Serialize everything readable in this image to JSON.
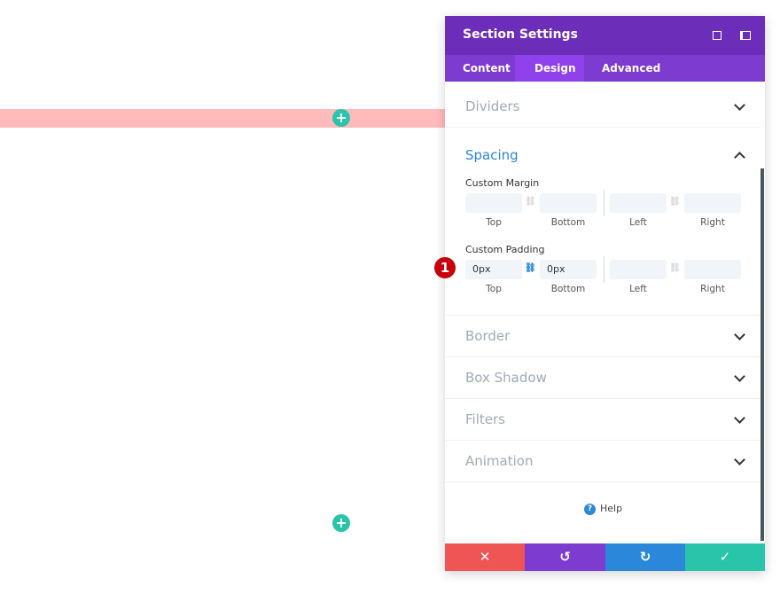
{
  "panel": {
    "title": "Section Settings",
    "tabs": [
      "Content",
      "Design",
      "Advanced"
    ],
    "sections": {
      "dividers": "Dividers",
      "spacing": "Spacing",
      "border": "Border",
      "box_shadow": "Box Shadow",
      "filters": "Filters",
      "animation": "Animation"
    },
    "margin": {
      "label": "Custom Margin",
      "fields": [
        "Top",
        "Bottom",
        "Left",
        "Right"
      ]
    },
    "padding": {
      "label": "Custom Padding",
      "fields": [
        "Top",
        "Bottom",
        "Left",
        "Right"
      ],
      "values": [
        "0px",
        "0px"
      ]
    },
    "help": "Help"
  },
  "badge": "1"
}
